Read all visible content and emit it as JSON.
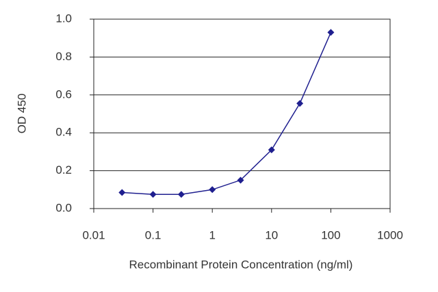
{
  "chart_data": {
    "type": "line",
    "xlabel": "Recombinant Protein Concentration (ng/ml)",
    "ylabel": "OD 450",
    "x": [
      0.03,
      0.1,
      0.3,
      1,
      3,
      10,
      30,
      100
    ],
    "values": [
      0.085,
      0.075,
      0.075,
      0.1,
      0.15,
      0.31,
      0.555,
      0.93
    ],
    "color": "#1f1f8f",
    "xlog": true,
    "xlim": [
      0.01,
      1000
    ],
    "xticks": [
      0.01,
      0.1,
      1,
      10,
      100,
      1000
    ],
    "ylim": [
      0,
      1
    ],
    "yticks": [
      {
        "value": 0,
        "label": "0.0"
      },
      0.2,
      0.4,
      0.6,
      0.8,
      {
        "value": 1,
        "label": "1.0"
      }
    ],
    "grid": true
  }
}
